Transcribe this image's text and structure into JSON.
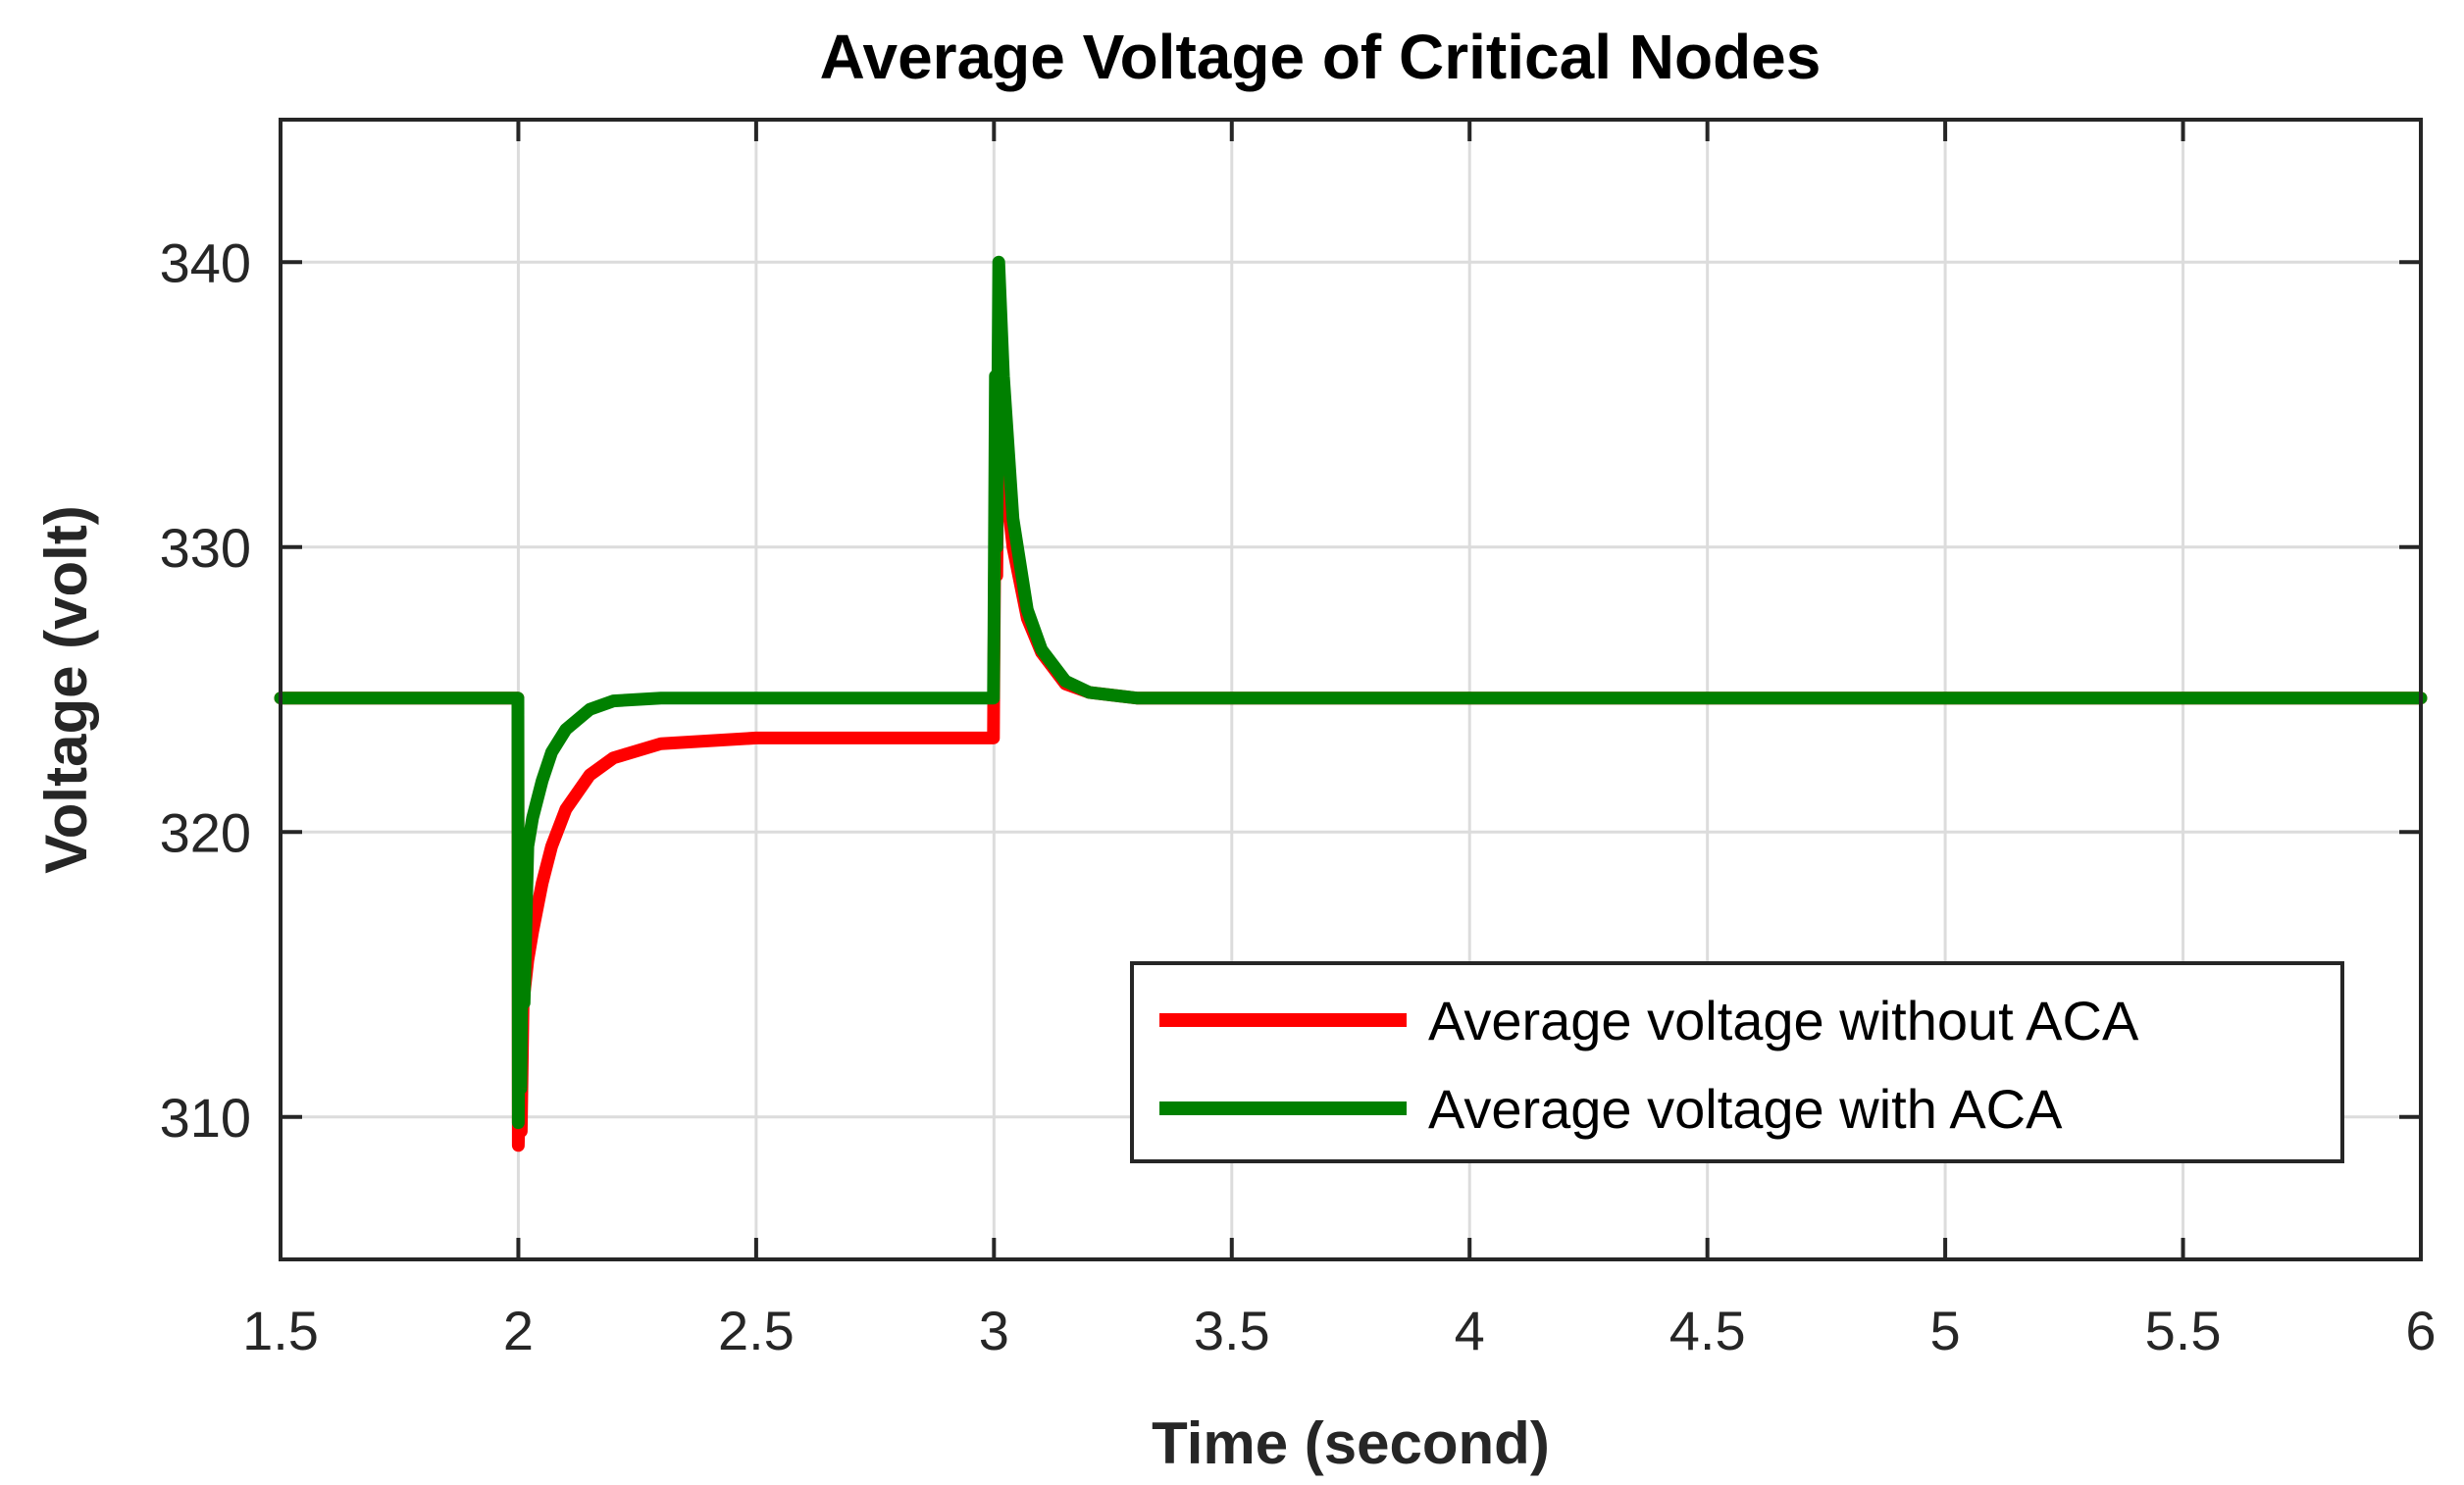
{
  "chart_data": {
    "type": "line",
    "title": "Average Voltage of Critical Nodes",
    "xlabel": "Time (second)",
    "ylabel": "Voltage (volt)",
    "xlim": [
      1.5,
      6
    ],
    "ylim": [
      305,
      345
    ],
    "xticks": [
      1.5,
      2,
      2.5,
      3,
      3.5,
      4,
      4.5,
      5,
      5.5,
      6
    ],
    "xtick_labels": [
      "1.5",
      "2",
      "2.5",
      "3",
      "3.5",
      "4",
      "4.5",
      "5",
      "5.5",
      "6"
    ],
    "yticks": [
      310,
      320,
      330,
      340
    ],
    "ytick_labels": [
      "310",
      "320",
      "330",
      "340"
    ],
    "grid": true,
    "legend_position": "lower-right",
    "series": [
      {
        "name": "Average voltage without ACA",
        "color": "#ff0000",
        "x": [
          1.5,
          1.999,
          2.0,
          2.004,
          2.006,
          2.01,
          2.02,
          2.03,
          2.05,
          2.07,
          2.1,
          2.15,
          2.2,
          2.3,
          2.5,
          2.8,
          2.999,
          3.0,
          3.003,
          3.006,
          3.01,
          3.02,
          3.04,
          3.07,
          3.1,
          3.15,
          3.2,
          3.3,
          4.0,
          5.0,
          6.0
        ],
        "y": [
          324.7,
          324.7,
          309.0,
          312.0,
          309.5,
          314.0,
          315.5,
          316.5,
          318.2,
          319.5,
          320.8,
          322.0,
          322.6,
          323.1,
          323.3,
          323.3,
          323.3,
          326.0,
          333.0,
          329.0,
          336.0,
          333.0,
          330.0,
          327.5,
          326.3,
          325.2,
          324.9,
          324.7,
          324.7,
          324.7,
          324.7
        ]
      },
      {
        "name": "Average voltage with ACA",
        "color": "#008000",
        "x": [
          1.5,
          1.999,
          2.0,
          2.003,
          2.005,
          2.008,
          2.012,
          2.02,
          2.03,
          2.05,
          2.07,
          2.1,
          2.15,
          2.2,
          2.3,
          2.5,
          2.8,
          2.999,
          3.0,
          3.003,
          3.006,
          3.01,
          3.02,
          3.04,
          3.07,
          3.1,
          3.15,
          3.2,
          3.3,
          4.0,
          5.0,
          6.0
        ],
        "y": [
          324.7,
          324.7,
          309.8,
          318.0,
          311.0,
          316.0,
          314.0,
          319.5,
          320.5,
          321.8,
          322.8,
          323.6,
          324.3,
          324.6,
          324.7,
          324.7,
          324.7,
          324.7,
          327.0,
          336.0,
          330.0,
          340.0,
          336.0,
          331.0,
          327.8,
          326.4,
          325.3,
          324.9,
          324.7,
          324.7,
          324.7,
          324.7
        ]
      }
    ]
  }
}
